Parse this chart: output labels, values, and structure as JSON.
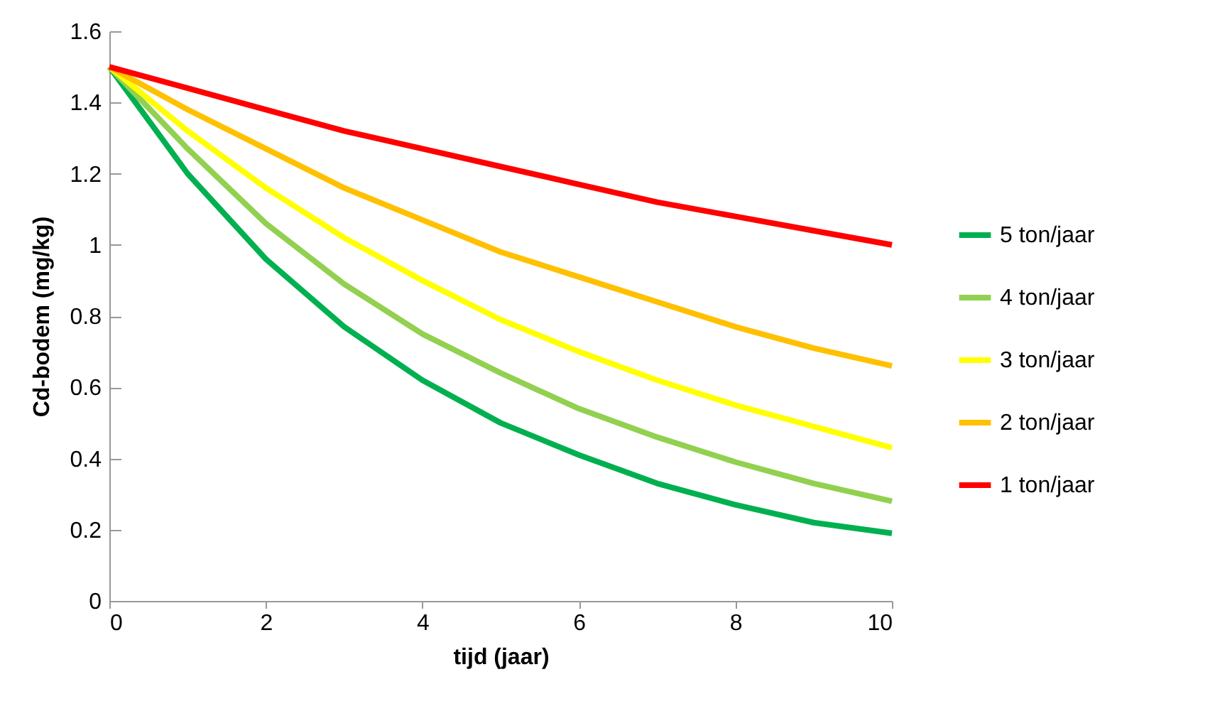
{
  "chart_data": {
    "type": "line",
    "xlabel": "tijd (jaar)",
    "ylabel": "Cd-bodem (mg/kg)",
    "x": [
      0,
      1,
      2,
      3,
      4,
      5,
      6,
      7,
      8,
      9,
      10
    ],
    "xlim": [
      0,
      10
    ],
    "xticks": [
      0,
      2,
      4,
      6,
      8,
      10
    ],
    "ylim": [
      0,
      1.6
    ],
    "yticks": [
      0,
      0.2,
      0.4,
      0.6,
      0.8,
      1,
      1.2,
      1.4,
      1.6
    ],
    "grid": false,
    "legend": "right",
    "marker": "none",
    "line_style": "solid",
    "series": [
      {
        "name": "5 ton/jaar",
        "color": "#00b050",
        "values": [
          1.5,
          1.2,
          0.96,
          0.77,
          0.62,
          0.5,
          0.41,
          0.33,
          0.27,
          0.22,
          0.19
        ]
      },
      {
        "name": "4 ton/jaar",
        "color": "#92d050",
        "values": [
          1.5,
          1.27,
          1.06,
          0.89,
          0.75,
          0.64,
          0.54,
          0.46,
          0.39,
          0.33,
          0.28
        ]
      },
      {
        "name": "3 ton/jaar",
        "color": "#ffff00",
        "values": [
          1.5,
          1.32,
          1.16,
          1.02,
          0.9,
          0.79,
          0.7,
          0.62,
          0.55,
          0.49,
          0.43
        ]
      },
      {
        "name": "2 ton/jaar",
        "color": "#ffc000",
        "values": [
          1.5,
          1.38,
          1.27,
          1.16,
          1.07,
          0.98,
          0.91,
          0.84,
          0.77,
          0.71,
          0.66
        ]
      },
      {
        "name": "1 ton/jaar",
        "color": "#ff0000",
        "values": [
          1.5,
          1.44,
          1.38,
          1.32,
          1.27,
          1.22,
          1.17,
          1.12,
          1.08,
          1.04,
          1.0
        ]
      }
    ]
  }
}
